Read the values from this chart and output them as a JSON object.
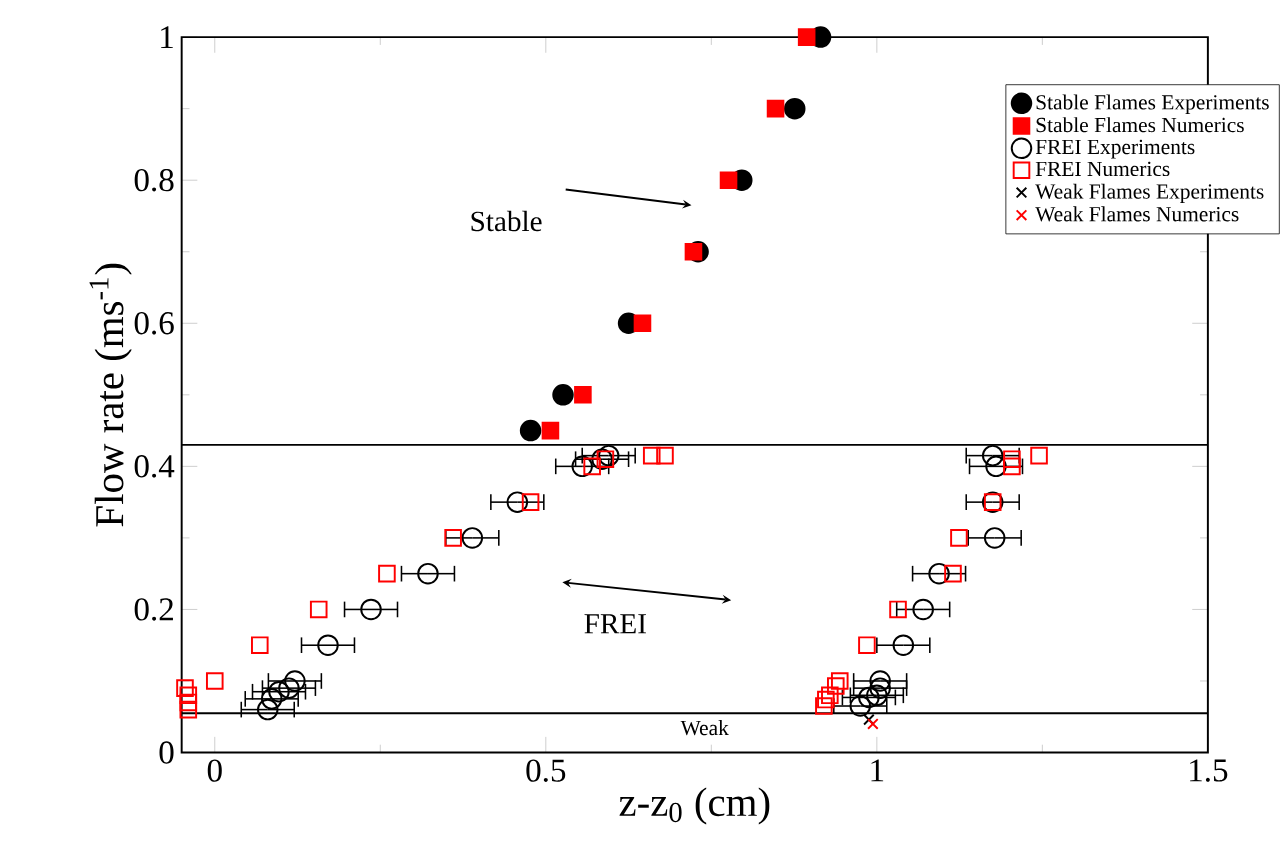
{
  "chart_data": {
    "type": "scatter",
    "xlabel": "z-z$_{0}$ (cm)",
    "ylabel": "Flow rate (ms$^{-1}$)",
    "xlim": [
      -0.05,
      1.5
    ],
    "ylim": [
      0,
      1
    ],
    "xticks": [
      0,
      0.5,
      1,
      1.5
    ],
    "yticks": [
      0,
      0.2,
      0.4,
      0.6,
      0.8,
      1
    ],
    "legend": "top right",
    "grid": false,
    "series": [
      {
        "name": "Stable Flames Experiments",
        "color": "#000000",
        "marker": "circle",
        "x": [
          0.915,
          0.876,
          0.796,
          0.73,
          0.625,
          0.526,
          0.477
        ],
        "values": [
          1.0,
          0.9,
          0.8,
          0.7,
          0.6,
          0.5,
          0.45
        ]
      },
      {
        "name": "Stable Flames Numerics",
        "color": "#ff0000",
        "marker": "square",
        "x": [
          0.894,
          0.847,
          0.776,
          0.723,
          0.646,
          0.556,
          0.507
        ],
        "values": [
          1.0,
          0.9,
          0.8,
          0.7,
          0.6,
          0.5,
          0.45
        ]
      },
      {
        "name": "FREI Experiments",
        "color": "#000000",
        "marker": "circle",
        "x": [
          0.555,
          0.585,
          0.595,
          0.457,
          0.389,
          0.322,
          0.236,
          0.171,
          0.121,
          0.112,
          0.097,
          0.086,
          0.08,
          1.175,
          1.18,
          1.175,
          1.178,
          1.094,
          1.07,
          1.04,
          1.005,
          1.005,
          1.0,
          0.988,
          0.975
        ],
        "values": [
          0.4,
          0.41,
          0.415,
          0.35,
          0.3,
          0.25,
          0.2,
          0.15,
          0.1,
          0.09,
          0.085,
          0.075,
          0.06,
          0.415,
          0.4,
          0.35,
          0.3,
          0.25,
          0.2,
          0.15,
          0.1,
          0.09,
          0.08,
          0.077,
          0.065
        ],
        "xerrors": [
          0.04,
          0.04,
          0.04,
          0.04,
          0.04,
          0.04,
          0.04,
          0.04,
          0.04,
          0.04,
          0.04,
          0.04,
          0.04,
          0.04,
          0.04,
          0.04,
          0.04,
          0.04,
          0.04,
          0.04,
          0.04,
          0.04,
          0.04,
          0.04,
          0.04
        ]
      },
      {
        "name": "FREI Numerics",
        "color": "#ff0000",
        "marker": "square",
        "x": [
          0.57,
          0.59,
          0.66,
          0.68,
          0.477,
          0.36,
          0.26,
          0.157,
          0.068,
          0.0,
          -0.045,
          -0.04,
          -0.04,
          -0.04,
          1.245,
          1.204,
          1.204,
          1.175,
          1.124,
          1.115,
          1.032,
          0.985,
          0.944,
          0.938,
          0.929,
          0.923,
          0.92
        ],
        "values": [
          0.4,
          0.41,
          0.415,
          0.415,
          0.35,
          0.3,
          0.25,
          0.2,
          0.15,
          0.1,
          0.09,
          0.08,
          0.07,
          0.06,
          0.415,
          0.41,
          0.4,
          0.35,
          0.3,
          0.25,
          0.2,
          0.15,
          0.1,
          0.093,
          0.08,
          0.074,
          0.065
        ]
      },
      {
        "name": "Weak Flames Experiments",
        "color": "#000000",
        "marker": "cross",
        "x": [
          0.988
        ],
        "values": [
          0.046
        ]
      },
      {
        "name": "Weak Flames Numerics",
        "color": "#ff0000",
        "marker": "cross",
        "x": [
          0.994
        ],
        "values": [
          0.04
        ]
      }
    ],
    "ref_lines": [
      {
        "axis": "y",
        "value": 0.43
      },
      {
        "axis": "y",
        "value": 0.055,
        "label": "Weak"
      }
    ],
    "annotations": [
      "Stable",
      "FREI"
    ]
  }
}
